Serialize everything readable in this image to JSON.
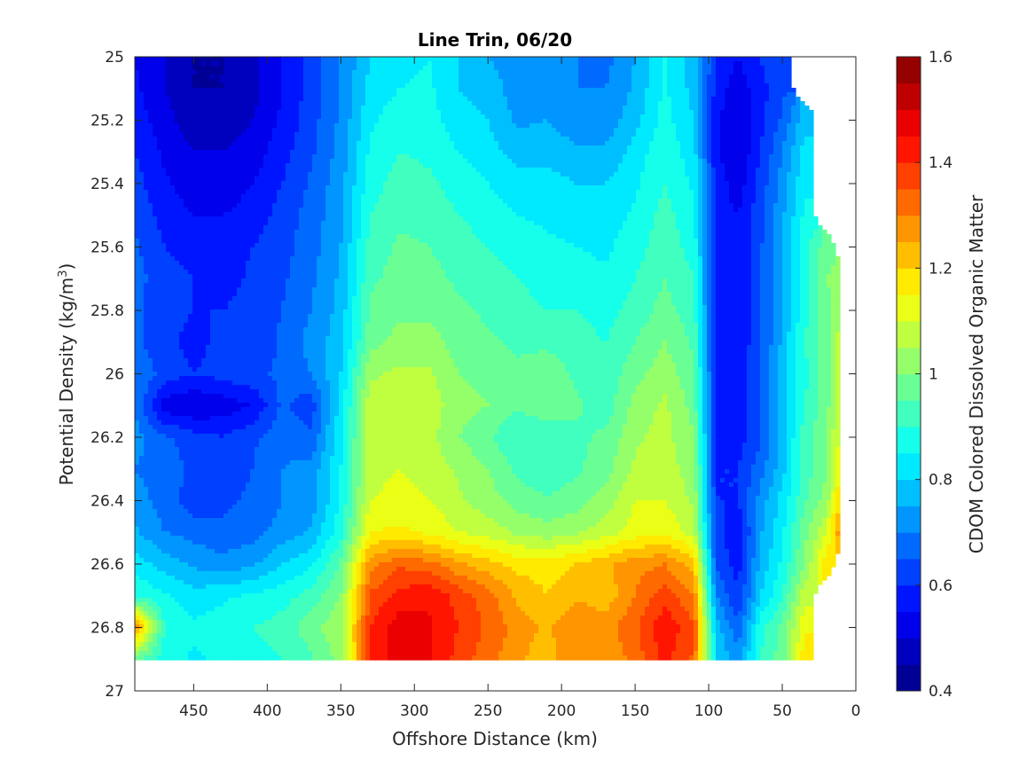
{
  "chart_data": {
    "type": "heatmap",
    "title": "Line Trin, 06/20",
    "xlabel": "Offshore Distance (km)",
    "ylabel_main": "Potential Density (kg/m",
    "ylabel_sup": "3",
    "ylabel_close": ")",
    "colorbar_label": "CDOM Colored Dissolved Organic Matter",
    "xlim": [
      490,
      0
    ],
    "x_reversed": true,
    "ylim": [
      25,
      27
    ],
    "y_reversed": true,
    "clim": [
      0.4,
      1.6
    ],
    "colormap": "jet",
    "levels": 24,
    "x_ticks": [
      450,
      400,
      350,
      300,
      250,
      200,
      150,
      100,
      50,
      0
    ],
    "x_tick_labels": [
      "450",
      "400",
      "350",
      "300",
      "250",
      "200",
      "150",
      "100",
      "50",
      "0"
    ],
    "y_ticks": [
      25,
      25.2,
      25.4,
      25.6,
      25.8,
      26,
      26.2,
      26.4,
      26.6,
      26.8,
      27
    ],
    "y_tick_labels": [
      "25",
      "25.2",
      "25.4",
      "25.6",
      "25.8",
      "26",
      "26.2",
      "26.4",
      "26.6",
      "26.8",
      "27"
    ],
    "colorbar_ticks": [
      0.4,
      0.6,
      0.8,
      1,
      1.2,
      1.4,
      1.6
    ],
    "colorbar_tick_labels": [
      "0.4",
      "0.6",
      "0.8",
      "1",
      "1.2",
      "1.4",
      "1.6"
    ],
    "x": [
      490,
      470,
      450,
      430,
      410,
      390,
      370,
      350,
      330,
      310,
      290,
      270,
      250,
      230,
      210,
      190,
      170,
      150,
      130,
      110,
      95,
      80,
      65,
      50,
      35,
      20,
      10
    ],
    "y": [
      25.0,
      25.1,
      25.2,
      25.3,
      25.4,
      25.5,
      25.6,
      25.7,
      25.8,
      25.9,
      26.0,
      26.1,
      26.2,
      26.3,
      26.4,
      26.5,
      26.6,
      26.7,
      26.8,
      26.9
    ],
    "z": [
      [
        0.55,
        0.5,
        0.45,
        0.45,
        0.48,
        0.55,
        0.62,
        0.7,
        0.8,
        0.83,
        0.85,
        0.8,
        0.75,
        0.72,
        0.72,
        0.7,
        0.68,
        0.75,
        0.85,
        0.78,
        0.6,
        0.55,
        0.6,
        0.65,
        null,
        null,
        null
      ],
      [
        0.56,
        0.5,
        0.45,
        0.45,
        0.48,
        0.55,
        0.62,
        0.7,
        0.82,
        0.85,
        0.86,
        0.8,
        0.78,
        0.72,
        0.73,
        0.7,
        0.7,
        0.76,
        0.86,
        0.78,
        0.58,
        0.52,
        0.58,
        0.64,
        null,
        null,
        null
      ],
      [
        0.58,
        0.52,
        0.47,
        0.47,
        0.5,
        0.56,
        0.63,
        0.71,
        0.84,
        0.88,
        0.87,
        0.82,
        0.8,
        0.74,
        0.75,
        0.72,
        0.72,
        0.78,
        0.87,
        0.8,
        0.56,
        0.5,
        0.58,
        0.66,
        0.78,
        null,
        null
      ],
      [
        0.6,
        0.54,
        0.5,
        0.5,
        0.52,
        0.58,
        0.64,
        0.72,
        0.86,
        0.9,
        0.89,
        0.85,
        0.82,
        0.78,
        0.78,
        0.76,
        0.76,
        0.82,
        0.89,
        0.82,
        0.56,
        0.5,
        0.6,
        0.7,
        0.82,
        null,
        null
      ],
      [
        0.62,
        0.56,
        0.52,
        0.52,
        0.55,
        0.6,
        0.66,
        0.73,
        0.88,
        0.92,
        0.91,
        0.88,
        0.85,
        0.82,
        0.82,
        0.8,
        0.8,
        0.84,
        0.9,
        0.84,
        0.58,
        0.52,
        0.62,
        0.72,
        0.84,
        null,
        null
      ],
      [
        0.64,
        0.58,
        0.55,
        0.55,
        0.57,
        0.62,
        0.67,
        0.74,
        0.9,
        0.94,
        0.93,
        0.9,
        0.88,
        0.85,
        0.84,
        0.83,
        0.82,
        0.86,
        0.92,
        0.86,
        0.58,
        0.55,
        0.63,
        0.74,
        0.86,
        null,
        null
      ],
      [
        0.66,
        0.6,
        0.58,
        0.57,
        0.6,
        0.63,
        0.68,
        0.75,
        0.92,
        0.96,
        0.95,
        0.92,
        0.9,
        0.88,
        0.86,
        0.85,
        0.84,
        0.88,
        0.93,
        0.88,
        0.58,
        0.56,
        0.64,
        0.76,
        0.88,
        0.98,
        null
      ],
      [
        0.67,
        0.62,
        0.6,
        0.58,
        0.61,
        0.64,
        0.69,
        0.76,
        0.94,
        0.97,
        0.97,
        0.94,
        0.92,
        0.9,
        0.88,
        0.87,
        0.86,
        0.9,
        0.95,
        0.9,
        0.58,
        0.56,
        0.64,
        0.76,
        0.88,
        1.0,
        1.02
      ],
      [
        0.66,
        0.62,
        0.6,
        0.6,
        0.62,
        0.65,
        0.7,
        0.77,
        0.96,
        0.99,
        0.99,
        0.96,
        0.94,
        0.92,
        0.9,
        0.9,
        0.88,
        0.92,
        0.97,
        0.92,
        0.57,
        0.56,
        0.64,
        0.76,
        0.88,
        0.98,
        1.05
      ],
      [
        0.66,
        0.62,
        0.58,
        0.62,
        0.6,
        0.66,
        0.72,
        0.78,
        0.98,
        1.02,
        1.02,
        0.98,
        0.96,
        0.94,
        0.94,
        0.92,
        0.9,
        0.95,
        1.0,
        0.94,
        0.57,
        0.56,
        0.64,
        0.76,
        0.9,
        0.98,
        1.08
      ],
      [
        0.7,
        0.63,
        0.6,
        0.62,
        0.64,
        0.66,
        0.7,
        0.8,
        1.04,
        1.06,
        1.06,
        1.0,
        0.98,
        0.96,
        0.98,
        0.94,
        0.92,
        0.98,
        1.03,
        0.96,
        0.58,
        0.58,
        0.64,
        0.78,
        0.88,
        0.98,
        1.1
      ],
      [
        0.7,
        0.52,
        0.5,
        0.52,
        0.55,
        0.66,
        0.62,
        0.82,
        1.08,
        1.09,
        1.08,
        1.02,
        1.0,
        0.96,
        0.98,
        0.96,
        0.92,
        1.02,
        1.06,
        0.98,
        0.58,
        0.58,
        0.64,
        0.78,
        0.9,
        0.98,
        1.1
      ],
      [
        0.72,
        0.66,
        0.62,
        0.6,
        0.64,
        0.68,
        0.66,
        0.84,
        1.08,
        1.08,
        1.07,
        1.0,
        0.96,
        0.9,
        0.92,
        0.94,
        0.96,
        1.04,
        1.07,
        1.0,
        0.59,
        0.58,
        0.64,
        0.78,
        0.92,
        1.0,
        1.12
      ],
      [
        0.7,
        0.68,
        0.64,
        0.62,
        0.65,
        0.7,
        0.72,
        0.85,
        1.08,
        1.1,
        1.08,
        1.04,
        1.0,
        0.94,
        0.9,
        0.94,
        0.98,
        1.06,
        1.08,
        1.02,
        0.6,
        0.6,
        0.68,
        0.78,
        0.92,
        1.0,
        1.15
      ],
      [
        0.72,
        0.68,
        0.62,
        0.64,
        0.66,
        0.7,
        0.72,
        0.86,
        1.1,
        1.12,
        1.1,
        1.06,
        1.02,
        0.98,
        0.96,
        0.98,
        1.02,
        1.1,
        1.1,
        1.04,
        0.6,
        0.6,
        0.72,
        0.82,
        0.94,
        1.02,
        1.22
      ],
      [
        0.76,
        0.7,
        0.68,
        0.66,
        0.68,
        0.72,
        0.76,
        0.88,
        1.15,
        1.16,
        1.14,
        1.1,
        1.08,
        1.04,
        1.02,
        1.04,
        1.08,
        1.12,
        1.14,
        1.08,
        0.62,
        0.56,
        0.74,
        0.84,
        0.98,
        1.1,
        1.3
      ],
      [
        0.82,
        0.78,
        0.74,
        0.72,
        0.74,
        0.8,
        0.84,
        0.96,
        1.28,
        1.34,
        1.32,
        1.26,
        1.22,
        1.18,
        1.18,
        1.2,
        1.24,
        1.28,
        1.3,
        1.22,
        0.64,
        0.58,
        0.76,
        0.86,
        1.0,
        1.18,
        null
      ],
      [
        0.9,
        0.86,
        0.82,
        0.84,
        0.86,
        0.88,
        0.92,
        1.0,
        1.36,
        1.42,
        1.44,
        1.38,
        1.32,
        1.24,
        1.2,
        1.24,
        1.22,
        1.3,
        1.38,
        1.3,
        0.7,
        0.6,
        0.8,
        0.9,
        1.08,
        null,
        null
      ],
      [
        1.3,
        0.9,
        0.86,
        0.88,
        0.9,
        0.92,
        0.98,
        1.04,
        1.4,
        1.48,
        1.46,
        1.4,
        1.34,
        1.28,
        1.24,
        1.3,
        1.28,
        1.34,
        1.44,
        1.36,
        0.78,
        0.66,
        0.88,
        0.96,
        1.14,
        null,
        null
      ],
      [
        0.96,
        0.88,
        0.84,
        0.86,
        0.88,
        0.9,
        0.94,
        1.02,
        1.4,
        1.48,
        1.46,
        1.38,
        1.32,
        1.26,
        1.22,
        1.3,
        1.26,
        1.32,
        1.42,
        1.34,
        0.8,
        0.72,
        0.9,
        0.98,
        1.18,
        null,
        null
      ]
    ]
  }
}
